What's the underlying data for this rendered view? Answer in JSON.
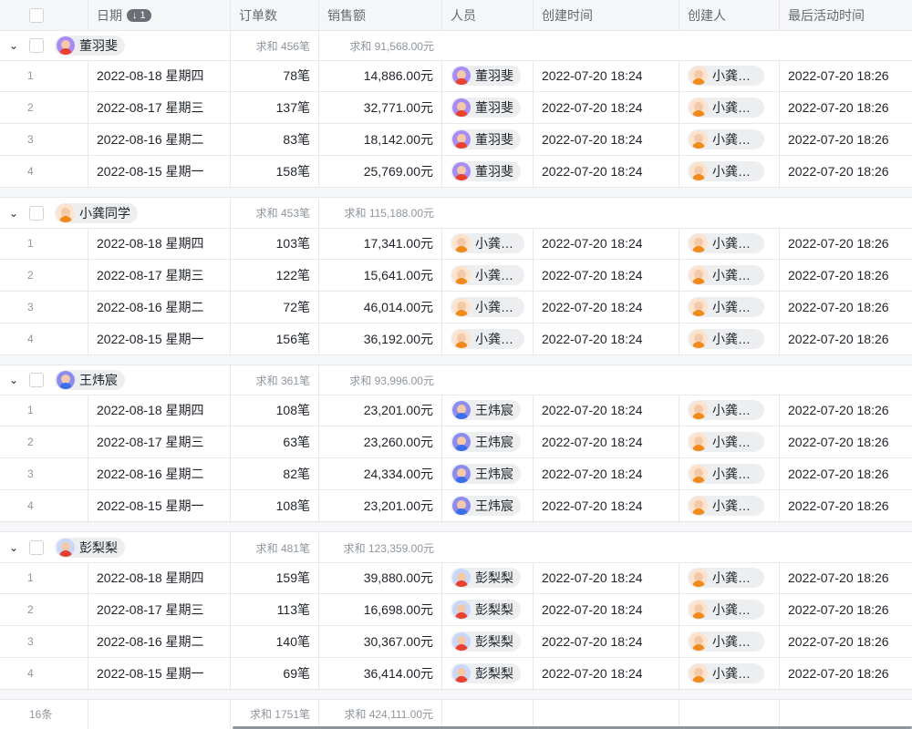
{
  "header": {
    "columns": [
      "日期",
      "订单数",
      "销售额",
      "人员",
      "创建时间",
      "创建人",
      "最后活动时间"
    ],
    "sort_badge": "↓ 1"
  },
  "people": {
    "dong": {
      "name": "董羽斐",
      "bg": "#a98bf5",
      "shirt": "#e8412f"
    },
    "gong": {
      "name": "小龚同学",
      "bg": "#fde2cc",
      "shirt": "#f08a1c"
    },
    "wang": {
      "name": "王炜宸",
      "bg": "#8c8cf0",
      "shirt": "#3b6ee8"
    },
    "peng": {
      "name": "彭梨梨",
      "bg": "#c7d8fb",
      "shirt": "#e8412f"
    }
  },
  "groups": [
    {
      "key": "dong",
      "name": "董羽斐",
      "orders_sum": "求和 456笔",
      "sales_sum": "求和 91,568.00元",
      "rows": [
        {
          "idx": "1",
          "date": "2022-08-18 星期四",
          "orders": "78笔",
          "sales": "14,886.00元",
          "person": "董羽斐",
          "created": "2022-07-20 18:24",
          "creator": "小龚同学",
          "last": "2022-07-20 18:26"
        },
        {
          "idx": "2",
          "date": "2022-08-17 星期三",
          "orders": "137笔",
          "sales": "32,771.00元",
          "person": "董羽斐",
          "created": "2022-07-20 18:24",
          "creator": "小龚同学",
          "last": "2022-07-20 18:26"
        },
        {
          "idx": "3",
          "date": "2022-08-16 星期二",
          "orders": "83笔",
          "sales": "18,142.00元",
          "person": "董羽斐",
          "created": "2022-07-20 18:24",
          "creator": "小龚同学",
          "last": "2022-07-20 18:26"
        },
        {
          "idx": "4",
          "date": "2022-08-15 星期一",
          "orders": "158笔",
          "sales": "25,769.00元",
          "person": "董羽斐",
          "created": "2022-07-20 18:24",
          "creator": "小龚同学",
          "last": "2022-07-20 18:26"
        }
      ]
    },
    {
      "key": "gong",
      "name": "小龚同学",
      "orders_sum": "求和 453笔",
      "sales_sum": "求和 115,188.00元",
      "rows": [
        {
          "idx": "1",
          "date": "2022-08-18 星期四",
          "orders": "103笔",
          "sales": "17,341.00元",
          "person": "小龚同学",
          "created": "2022-07-20 18:24",
          "creator": "小龚同学",
          "last": "2022-07-20 18:26"
        },
        {
          "idx": "2",
          "date": "2022-08-17 星期三",
          "orders": "122笔",
          "sales": "15,641.00元",
          "person": "小龚同学",
          "created": "2022-07-20 18:24",
          "creator": "小龚同学",
          "last": "2022-07-20 18:26"
        },
        {
          "idx": "3",
          "date": "2022-08-16 星期二",
          "orders": "72笔",
          "sales": "46,014.00元",
          "person": "小龚同学",
          "created": "2022-07-20 18:24",
          "creator": "小龚同学",
          "last": "2022-07-20 18:26"
        },
        {
          "idx": "4",
          "date": "2022-08-15 星期一",
          "orders": "156笔",
          "sales": "36,192.00元",
          "person": "小龚同学",
          "created": "2022-07-20 18:24",
          "creator": "小龚同学",
          "last": "2022-07-20 18:26"
        }
      ]
    },
    {
      "key": "wang",
      "name": "王炜宸",
      "orders_sum": "求和 361笔",
      "sales_sum": "求和 93,996.00元",
      "rows": [
        {
          "idx": "1",
          "date": "2022-08-18 星期四",
          "orders": "108笔",
          "sales": "23,201.00元",
          "person": "王炜宸",
          "created": "2022-07-20 18:24",
          "creator": "小龚同学",
          "last": "2022-07-20 18:26"
        },
        {
          "idx": "2",
          "date": "2022-08-17 星期三",
          "orders": "63笔",
          "sales": "23,260.00元",
          "person": "王炜宸",
          "created": "2022-07-20 18:24",
          "creator": "小龚同学",
          "last": "2022-07-20 18:26"
        },
        {
          "idx": "3",
          "date": "2022-08-16 星期二",
          "orders": "82笔",
          "sales": "24,334.00元",
          "person": "王炜宸",
          "created": "2022-07-20 18:24",
          "creator": "小龚同学",
          "last": "2022-07-20 18:26"
        },
        {
          "idx": "4",
          "date": "2022-08-15 星期一",
          "orders": "108笔",
          "sales": "23,201.00元",
          "person": "王炜宸",
          "created": "2022-07-20 18:24",
          "creator": "小龚同学",
          "last": "2022-07-20 18:26"
        }
      ]
    },
    {
      "key": "peng",
      "name": "彭梨梨",
      "orders_sum": "求和 481笔",
      "sales_sum": "求和 123,359.00元",
      "rows": [
        {
          "idx": "1",
          "date": "2022-08-18 星期四",
          "orders": "159笔",
          "sales": "39,880.00元",
          "person": "彭梨梨",
          "created": "2022-07-20 18:24",
          "creator": "小龚同学",
          "last": "2022-07-20 18:26"
        },
        {
          "idx": "2",
          "date": "2022-08-17 星期三",
          "orders": "113笔",
          "sales": "16,698.00元",
          "person": "彭梨梨",
          "created": "2022-07-20 18:24",
          "creator": "小龚同学",
          "last": "2022-07-20 18:26"
        },
        {
          "idx": "3",
          "date": "2022-08-16 星期二",
          "orders": "140笔",
          "sales": "30,367.00元",
          "person": "彭梨梨",
          "created": "2022-07-20 18:24",
          "creator": "小龚同学",
          "last": "2022-07-20 18:26"
        },
        {
          "idx": "4",
          "date": "2022-08-15 星期一",
          "orders": "69笔",
          "sales": "36,414.00元",
          "person": "彭梨梨",
          "created": "2022-07-20 18:24",
          "creator": "小龚同学",
          "last": "2022-07-20 18:26"
        }
      ]
    }
  ],
  "footer": {
    "count": "16条",
    "orders_sum": "求和 1751笔",
    "sales_sum": "求和 424,111.00元"
  }
}
